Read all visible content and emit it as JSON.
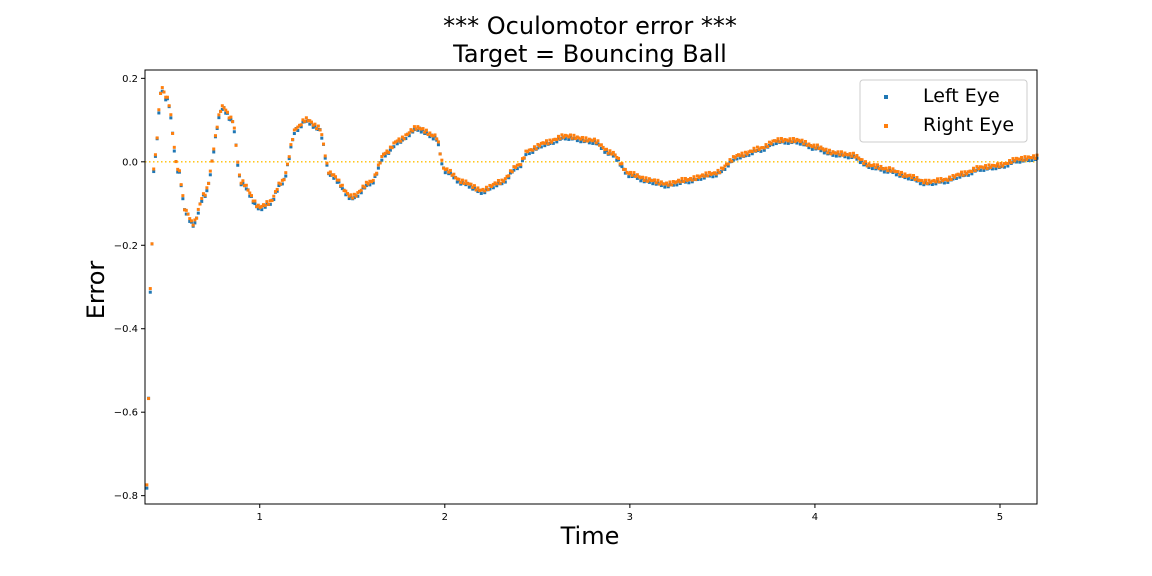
{
  "chart_data": {
    "type": "scatter",
    "title": "*** Oculomotor error ***",
    "subtitle": "Target = Bouncing Ball",
    "xlabel": "Time",
    "ylabel": "Error",
    "xlim": [
      0.38,
      5.2
    ],
    "ylim": [
      -0.82,
      0.22
    ],
    "xticks": [
      1,
      2,
      3,
      4,
      5
    ],
    "yticks": [
      0.2,
      0.0,
      -0.2,
      -0.4,
      -0.6,
      -0.8
    ],
    "ytick_labels": [
      "0.2",
      "0.0",
      "−0.2",
      "−0.4",
      "−0.6",
      "−0.8"
    ],
    "grid": false,
    "legend_position": "top-right",
    "reference_line": {
      "y": 0.0,
      "color": "#ffbf00",
      "style": "dotted"
    },
    "series": [
      {
        "name": "Left Eye",
        "color": "#1f77b4",
        "x_start": 0.39,
        "x_end": 5.2,
        "samples": 520
      },
      {
        "name": "Right Eye",
        "color": "#ff7f0e",
        "x_start": 0.39,
        "x_end": 5.2,
        "samples": 520
      }
    ],
    "shape_keypoints": [
      [
        0.39,
        -0.78
      ],
      [
        0.41,
        -0.3
      ],
      [
        0.43,
        0.0
      ],
      [
        0.47,
        0.175
      ],
      [
        0.5,
        0.15
      ],
      [
        0.56,
        -0.02
      ],
      [
        0.6,
        -0.12
      ],
      [
        0.64,
        -0.15
      ],
      [
        0.7,
        -0.08
      ],
      [
        0.8,
        0.13
      ],
      [
        0.85,
        0.1
      ],
      [
        0.9,
        -0.05
      ],
      [
        1.0,
        -0.11
      ],
      [
        1.05,
        -0.1
      ],
      [
        1.12,
        -0.05
      ],
      [
        1.2,
        0.08
      ],
      [
        1.25,
        0.1
      ],
      [
        1.32,
        0.08
      ],
      [
        1.38,
        -0.03
      ],
      [
        1.5,
        -0.085
      ],
      [
        1.6,
        -0.05
      ],
      [
        1.68,
        0.02
      ],
      [
        1.75,
        0.05
      ],
      [
        1.85,
        0.08
      ],
      [
        1.95,
        0.06
      ],
      [
        2.0,
        -0.02
      ],
      [
        2.1,
        -0.05
      ],
      [
        2.2,
        -0.07
      ],
      [
        2.3,
        -0.05
      ],
      [
        2.4,
        -0.01
      ],
      [
        2.45,
        0.025
      ],
      [
        2.55,
        0.045
      ],
      [
        2.65,
        0.06
      ],
      [
        2.8,
        0.05
      ],
      [
        2.9,
        0.02
      ],
      [
        3.0,
        -0.03
      ],
      [
        3.1,
        -0.045
      ],
      [
        3.2,
        -0.055
      ],
      [
        3.3,
        -0.045
      ],
      [
        3.45,
        -0.03
      ],
      [
        3.6,
        0.015
      ],
      [
        3.7,
        0.03
      ],
      [
        3.8,
        0.05
      ],
      [
        3.9,
        0.05
      ],
      [
        4.0,
        0.035
      ],
      [
        4.1,
        0.02
      ],
      [
        4.2,
        0.015
      ],
      [
        4.3,
        -0.01
      ],
      [
        4.4,
        -0.02
      ],
      [
        4.5,
        -0.035
      ],
      [
        4.6,
        -0.05
      ],
      [
        4.7,
        -0.045
      ],
      [
        4.8,
        -0.03
      ],
      [
        4.9,
        -0.015
      ],
      [
        5.0,
        -0.01
      ],
      [
        5.1,
        0.005
      ],
      [
        5.2,
        0.01
      ]
    ]
  }
}
